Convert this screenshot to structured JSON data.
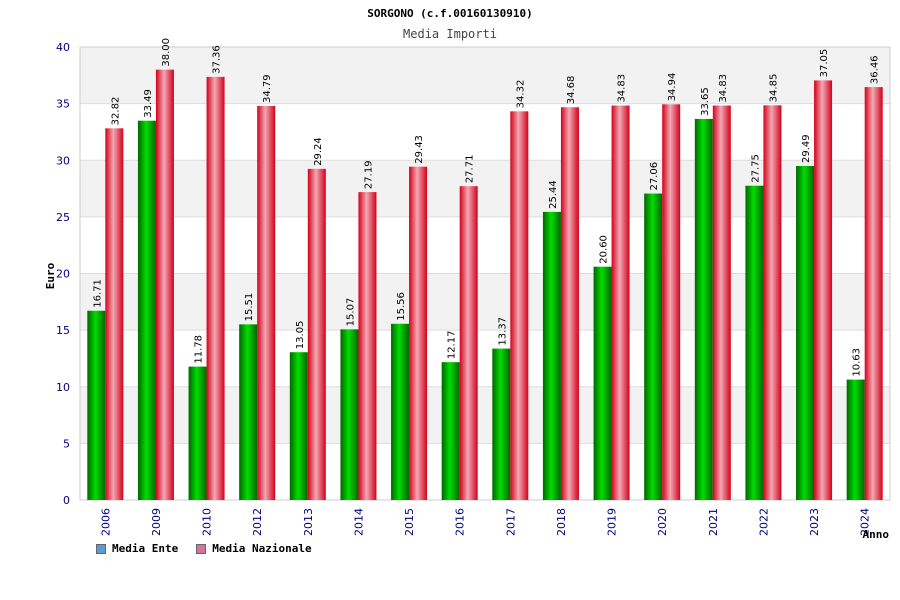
{
  "chart_data": {
    "type": "bar",
    "title": "SORGONO (c.f.00160130910)",
    "subtitle": "Media Importi",
    "ylabel": "Euro",
    "xlabel": "Anno",
    "ylim": [
      0,
      40
    ],
    "yticks": [
      "0",
      "5",
      "10",
      "15",
      "20",
      "25",
      "30",
      "35",
      "40"
    ],
    "grid": true,
    "legend_position": "bottom-left",
    "categories": [
      "2006",
      "2009",
      "2010",
      "2012",
      "2013",
      "2014",
      "2015",
      "2016",
      "2017",
      "2018",
      "2019",
      "2020",
      "2021",
      "2022",
      "2023",
      "2024"
    ],
    "series": [
      {
        "name": "Media Ente",
        "color": "#00b000",
        "values": [
          16.71,
          33.49,
          11.78,
          15.51,
          13.05,
          15.07,
          15.56,
          12.17,
          13.37,
          25.44,
          20.6,
          27.06,
          33.65,
          27.75,
          29.49,
          10.63
        ],
        "labels": [
          "16.71",
          "33.49",
          "11.78",
          "15.51",
          "13.05",
          "15.07",
          "15.56",
          "12.17",
          "13.37",
          "25.44",
          "20.60",
          "27.06",
          "33.65",
          "27.75",
          "29.49",
          "10.63"
        ]
      },
      {
        "name": "Media Nazionale",
        "color": "#e8192c",
        "values": [
          32.82,
          38.0,
          37.36,
          34.79,
          29.24,
          27.19,
          29.43,
          27.71,
          34.32,
          34.68,
          34.83,
          34.94,
          34.83,
          34.85,
          37.05,
          36.46
        ],
        "labels": [
          "32.82",
          "38.00",
          "37.36",
          "34.79",
          "29.24",
          "27.19",
          "29.43",
          "27.71",
          "34.32",
          "34.68",
          "34.83",
          "34.94",
          "34.83",
          "34.85",
          "37.05",
          "36.46"
        ]
      }
    ]
  },
  "legend": {
    "items": [
      {
        "label": "Media Ente",
        "color": "#5b9bd5"
      },
      {
        "label": "Media Nazionale",
        "color": "#d9719b"
      }
    ]
  }
}
